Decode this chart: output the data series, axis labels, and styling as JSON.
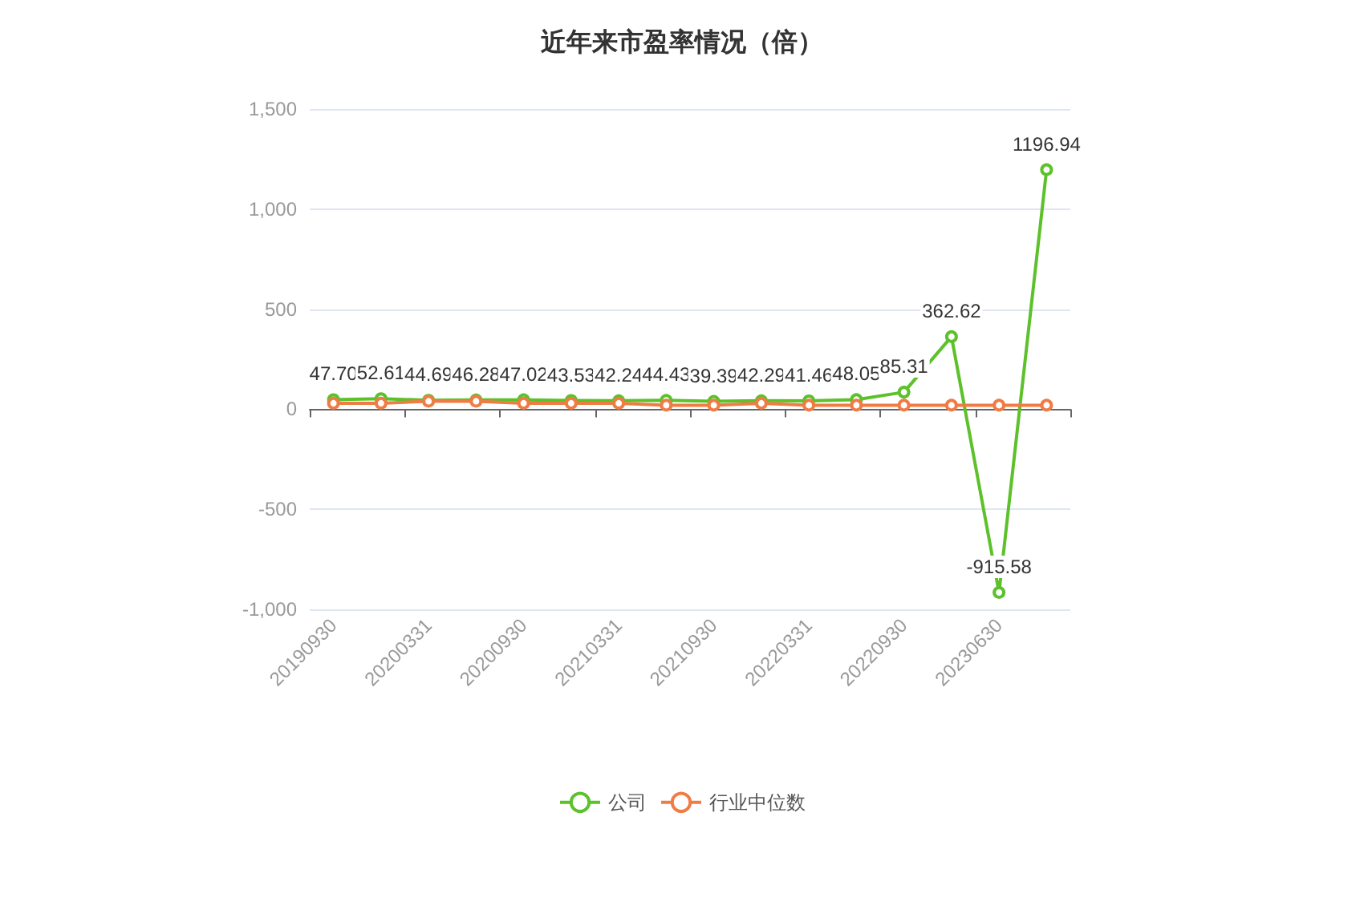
{
  "chart_data": {
    "type": "line",
    "title": "近年来市盈率情况（倍）",
    "categories": [
      "20190930",
      null,
      "20200331",
      null,
      "20200930",
      null,
      "20210331",
      null,
      "20210930",
      null,
      "20220331",
      null,
      "20220930",
      null,
      "20230630",
      null
    ],
    "series": [
      {
        "name": "公司",
        "color": "#5cc12a",
        "values": [
          47.7,
          52.61,
          44.69,
          46.28,
          47.02,
          43.53,
          42.24,
          44.43,
          39.39,
          42.29,
          41.46,
          48.05,
          85.31,
          362.62,
          -915.58,
          1196.94
        ],
        "value_labels": [
          "47.70",
          "52.61",
          "44.69",
          "46.28",
          "47.02",
          "43.53",
          "42.24",
          "44.43",
          "39.39",
          "42.29",
          "41.46",
          "48.05",
          "85.31",
          "362.62",
          "-915.58",
          "1196.94"
        ]
      },
      {
        "name": "行业中位数",
        "color": "#f07c45",
        "values": [
          30,
          30,
          40,
          40,
          30,
          30,
          30,
          20,
          20,
          30,
          20,
          20,
          20,
          20,
          20,
          20
        ]
      }
    ],
    "ylim": [
      -1000,
      1500
    ],
    "yticks": [
      {
        "value": -1000,
        "label": "-1,000"
      },
      -500,
      0,
      500,
      {
        "value": 1000,
        "label": "1,000"
      },
      {
        "value": 1500,
        "label": "1,500"
      }
    ],
    "grid": "y",
    "legend": "bottom",
    "marker": "circle",
    "line_style": "solid"
  }
}
